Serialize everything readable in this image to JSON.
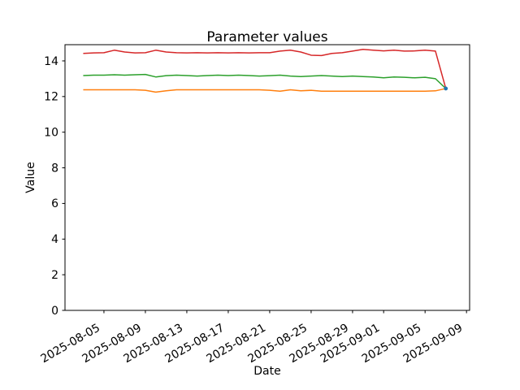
{
  "figure": {
    "background": "#ffffff"
  },
  "chart_data": {
    "type": "line",
    "title": "Parameter values",
    "xlabel": "Date",
    "ylabel": "Value",
    "grid": false,
    "legend": false,
    "axis_color": "#000000",
    "text_color": "#000000",
    "ylim": [
      0,
      14.91
    ],
    "xlim_days": [
      -1.76,
      37.3
    ],
    "y_ticks": [
      0,
      2,
      4,
      6,
      8,
      10,
      12,
      14
    ],
    "y_tick_labels": [
      "0",
      "2",
      "4",
      "6",
      "8",
      "10",
      "12",
      "14"
    ],
    "x_tick_labels": [
      "2025-08-05",
      "2025-08-09",
      "2025-08-13",
      "2025-08-17",
      "2025-08-21",
      "2025-08-25",
      "2025-08-29",
      "2025-09-01",
      "2025-09-05",
      "2025-09-09"
    ],
    "x_dates": [
      "2025-08-03",
      "2025-08-04",
      "2025-08-05",
      "2025-08-06",
      "2025-08-07",
      "2025-08-08",
      "2025-08-09",
      "2025-08-10",
      "2025-08-11",
      "2025-08-12",
      "2025-08-13",
      "2025-08-14",
      "2025-08-15",
      "2025-08-16",
      "2025-08-17",
      "2025-08-18",
      "2025-08-19",
      "2025-08-20",
      "2025-08-21",
      "2025-08-22",
      "2025-08-23",
      "2025-08-24",
      "2025-08-25",
      "2025-08-26",
      "2025-08-27",
      "2025-08-28",
      "2025-08-29",
      "2025-08-30",
      "2025-08-31",
      "2025-09-01",
      "2025-09-02",
      "2025-09-03",
      "2025-09-04",
      "2025-09-05",
      "2025-09-06",
      "2025-09-07"
    ],
    "series": [
      {
        "name": "red",
        "color": "#d62728",
        "values": [
          14.42,
          14.45,
          14.46,
          14.6,
          14.5,
          14.45,
          14.46,
          14.6,
          14.5,
          14.46,
          14.45,
          14.46,
          14.45,
          14.46,
          14.45,
          14.46,
          14.45,
          14.46,
          14.46,
          14.55,
          14.6,
          14.5,
          14.32,
          14.3,
          14.42,
          14.46,
          14.55,
          14.65,
          14.6,
          14.56,
          14.6,
          14.55,
          14.56,
          14.6,
          14.55,
          12.45
        ]
      },
      {
        "name": "green",
        "color": "#2ca02c",
        "values": [
          13.18,
          13.2,
          13.2,
          13.22,
          13.2,
          13.22,
          13.24,
          13.1,
          13.17,
          13.2,
          13.18,
          13.15,
          13.18,
          13.2,
          13.18,
          13.2,
          13.18,
          13.15,
          13.17,
          13.2,
          13.15,
          13.12,
          13.15,
          13.18,
          13.15,
          13.12,
          13.15,
          13.12,
          13.1,
          13.05,
          13.1,
          13.08,
          13.05,
          13.08,
          13.0,
          12.45
        ]
      },
      {
        "name": "orange",
        "color": "#ff7f0e",
        "values": [
          12.38,
          12.38,
          12.38,
          12.38,
          12.38,
          12.38,
          12.35,
          12.25,
          12.32,
          12.38,
          12.38,
          12.38,
          12.38,
          12.38,
          12.38,
          12.38,
          12.38,
          12.38,
          12.35,
          12.3,
          12.38,
          12.32,
          12.35,
          12.3,
          12.3,
          12.3,
          12.3,
          12.3,
          12.3,
          12.3,
          12.3,
          12.3,
          12.3,
          12.3,
          12.32,
          12.45
        ]
      }
    ],
    "end_marker": {
      "date": "2025-09-07",
      "value": 12.45,
      "color": "#1f77b4"
    }
  }
}
